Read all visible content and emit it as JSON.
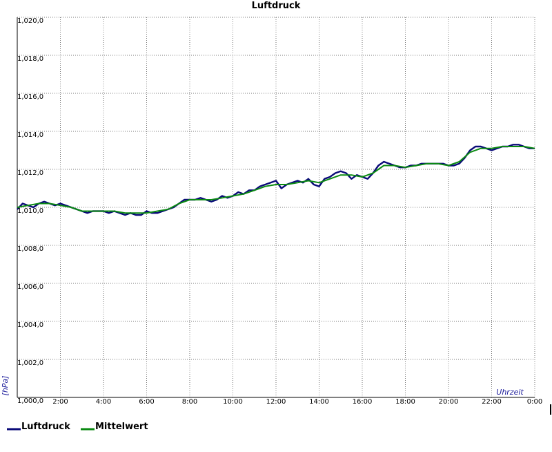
{
  "chart_data": {
    "type": "line",
    "title": "Luftdruck",
    "xlabel": "Uhrzeit",
    "ylabel": "[hPa]",
    "xlim": [
      0,
      24
    ],
    "ylim": [
      1000,
      1020
    ],
    "y_ticks": [
      "1,000,0",
      "1,002,0",
      "1,004,0",
      "1,006,0",
      "1,008,0",
      "1,010,0",
      "1,012,0",
      "1,014,0",
      "1,016,0",
      "1,018,0",
      "1,020,0"
    ],
    "x_ticks": [
      "2:00",
      "4:00",
      "6:00",
      "8:00",
      "10:00",
      "12:00",
      "14:00",
      "16:00",
      "18:00",
      "20:00",
      "22:00",
      "0:00"
    ],
    "grid": true,
    "legend_position": "bottom-left",
    "series": [
      {
        "name": "Luftdruck",
        "color": "#0a0a78",
        "x": [
          0.0,
          0.25,
          0.5,
          0.75,
          1.0,
          1.25,
          1.5,
          1.75,
          2.0,
          2.25,
          2.5,
          2.75,
          3.0,
          3.25,
          3.5,
          3.75,
          4.0,
          4.25,
          4.5,
          4.75,
          5.0,
          5.25,
          5.5,
          5.75,
          6.0,
          6.25,
          6.5,
          6.75,
          7.0,
          7.25,
          7.5,
          7.75,
          8.0,
          8.25,
          8.5,
          8.75,
          9.0,
          9.25,
          9.5,
          9.75,
          10.0,
          10.25,
          10.5,
          10.75,
          11.0,
          11.25,
          11.5,
          11.75,
          12.0,
          12.25,
          12.5,
          12.75,
          13.0,
          13.25,
          13.5,
          13.75,
          14.0,
          14.25,
          14.5,
          14.75,
          15.0,
          15.25,
          15.5,
          15.75,
          16.0,
          16.25,
          16.5,
          16.75,
          17.0,
          17.25,
          17.5,
          17.75,
          18.0,
          18.25,
          18.5,
          18.75,
          19.0,
          19.25,
          19.5,
          19.75,
          20.0,
          20.25,
          20.5,
          20.75,
          21.0,
          21.25,
          21.5,
          21.75,
          22.0,
          22.25,
          22.5,
          22.75,
          23.0,
          23.25,
          23.5,
          23.75,
          24.0
        ],
        "y": [
          1009.9,
          1010.2,
          1010.1,
          1010.0,
          1010.2,
          1010.3,
          1010.2,
          1010.1,
          1010.2,
          1010.1,
          1010.0,
          1009.9,
          1009.8,
          1009.7,
          1009.8,
          1009.8,
          1009.8,
          1009.7,
          1009.8,
          1009.7,
          1009.6,
          1009.7,
          1009.6,
          1009.6,
          1009.8,
          1009.7,
          1009.7,
          1009.8,
          1009.9,
          1010.0,
          1010.2,
          1010.4,
          1010.4,
          1010.4,
          1010.5,
          1010.4,
          1010.3,
          1010.4,
          1010.6,
          1010.5,
          1010.6,
          1010.8,
          1010.7,
          1010.9,
          1010.9,
          1011.1,
          1011.2,
          1011.3,
          1011.4,
          1011.0,
          1011.2,
          1011.3,
          1011.4,
          1011.3,
          1011.5,
          1011.2,
          1011.1,
          1011.5,
          1011.6,
          1011.8,
          1011.9,
          1011.8,
          1011.5,
          1011.7,
          1011.6,
          1011.5,
          1011.8,
          1012.2,
          1012.4,
          1012.3,
          1012.2,
          1012.1,
          1012.1,
          1012.2,
          1012.2,
          1012.3,
          1012.3,
          1012.3,
          1012.3,
          1012.3,
          1012.2,
          1012.2,
          1012.3,
          1012.6,
          1013.0,
          1013.2,
          1013.2,
          1013.1,
          1013.0,
          1013.1,
          1013.2,
          1013.2,
          1013.3,
          1013.3,
          1013.2,
          1013.1,
          1013.1
        ]
      },
      {
        "name": "Mittelwert",
        "color": "#0b8a12",
        "x": [
          0.0,
          0.5,
          1.0,
          1.5,
          2.0,
          2.5,
          3.0,
          3.5,
          4.0,
          4.5,
          5.0,
          5.5,
          6.0,
          6.5,
          7.0,
          7.5,
          8.0,
          8.5,
          9.0,
          9.5,
          10.0,
          10.5,
          11.0,
          11.5,
          12.0,
          12.5,
          13.0,
          13.5,
          14.0,
          14.5,
          15.0,
          15.5,
          16.0,
          16.5,
          17.0,
          17.5,
          18.0,
          18.5,
          19.0,
          19.5,
          20.0,
          20.5,
          21.0,
          21.5,
          22.0,
          22.5,
          23.0,
          23.5,
          24.0
        ],
        "y": [
          1010.0,
          1010.1,
          1010.2,
          1010.2,
          1010.1,
          1010.0,
          1009.8,
          1009.8,
          1009.8,
          1009.8,
          1009.7,
          1009.7,
          1009.7,
          1009.8,
          1009.9,
          1010.2,
          1010.4,
          1010.4,
          1010.4,
          1010.5,
          1010.6,
          1010.7,
          1010.9,
          1011.1,
          1011.2,
          1011.2,
          1011.3,
          1011.4,
          1011.3,
          1011.5,
          1011.7,
          1011.7,
          1011.6,
          1011.8,
          1012.2,
          1012.2,
          1012.1,
          1012.2,
          1012.3,
          1012.3,
          1012.2,
          1012.4,
          1012.9,
          1013.1,
          1013.1,
          1013.2,
          1013.2,
          1013.2,
          1013.1
        ]
      }
    ]
  }
}
